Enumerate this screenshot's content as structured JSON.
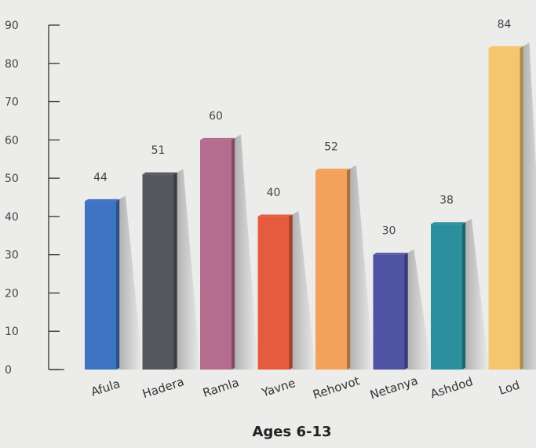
{
  "chart_data": {
    "type": "bar",
    "title": "Ages 6-13",
    "categories": [
      "Afula",
      "Hadera",
      "Ramla",
      "Yavne",
      "Rehovot",
      "Netanya",
      "Ashdod",
      "Lod"
    ],
    "values": [
      44,
      51,
      60,
      40,
      52,
      30,
      38,
      84
    ],
    "colors": [
      "#3f73c4",
      "#55575c",
      "#b46c8f",
      "#e55b3e",
      "#f3a25c",
      "#4f53a4",
      "#2c8f9d",
      "#f4c66e"
    ],
    "ylim": [
      0,
      90
    ],
    "yticks": [
      0,
      10,
      20,
      30,
      40,
      50,
      60,
      70,
      80,
      90
    ],
    "grid": false,
    "legend": "none"
  }
}
